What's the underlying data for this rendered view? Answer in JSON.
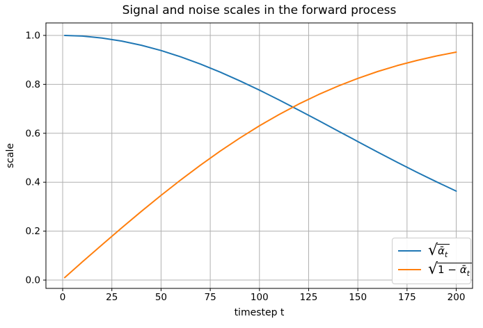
{
  "figure": {
    "background": "#ffffff",
    "text_color": "#000000"
  },
  "chart_data": {
    "type": "line",
    "title": "Signal and noise scales in the forward process",
    "xlabel": "timestep t",
    "ylabel": "scale",
    "grid": true,
    "grid_color": "#b0b0b0",
    "spine_color": "#000000",
    "legend_position": "lower right",
    "xlim": [
      -8.5,
      208.3
    ],
    "ylim": [
      -0.034,
      1.051
    ],
    "xticks": [
      0,
      25,
      50,
      75,
      100,
      125,
      150,
      175,
      200
    ],
    "xtick_labels": [
      "0",
      "25",
      "50",
      "75",
      "100",
      "125",
      "150",
      "175",
      "200"
    ],
    "yticks": [
      0.0,
      0.2,
      0.4,
      0.6,
      0.8,
      1.0
    ],
    "ytick_labels": [
      "0.0",
      "0.2",
      "0.4",
      "0.6",
      "0.8",
      "1.0"
    ],
    "x": [
      1,
      10,
      20,
      30,
      40,
      50,
      60,
      70,
      80,
      90,
      100,
      110,
      120,
      130,
      140,
      150,
      160,
      170,
      180,
      190,
      200
    ],
    "series": [
      {
        "name": "sqrt_alpha_bar",
        "label_pre": "",
        "label_alpha": "ᾱ",
        "label_sub": "t",
        "color": "#1f77b4",
        "values": [
          1.0,
          0.9973,
          0.9895,
          0.977,
          0.9598,
          0.9381,
          0.9124,
          0.8829,
          0.8501,
          0.8143,
          0.7762,
          0.7361,
          0.6946,
          0.6521,
          0.6091,
          0.5661,
          0.5234,
          0.4814,
          0.4406,
          0.4013,
          0.3636
        ]
      },
      {
        "name": "sqrt_one_minus_alpha_bar",
        "label_pre": "1 − ",
        "label_alpha": "ᾱ",
        "label_sub": "t",
        "color": "#ff7f0e",
        "values": [
          0.01,
          0.0741,
          0.1442,
          0.2133,
          0.2808,
          0.3463,
          0.4093,
          0.4696,
          0.5267,
          0.5804,
          0.6305,
          0.6769,
          0.7194,
          0.7582,
          0.7931,
          0.8244,
          0.8521,
          0.8765,
          0.8977,
          0.916,
          0.9316
        ]
      }
    ],
    "legend": {
      "radical_symbol": "√"
    }
  }
}
